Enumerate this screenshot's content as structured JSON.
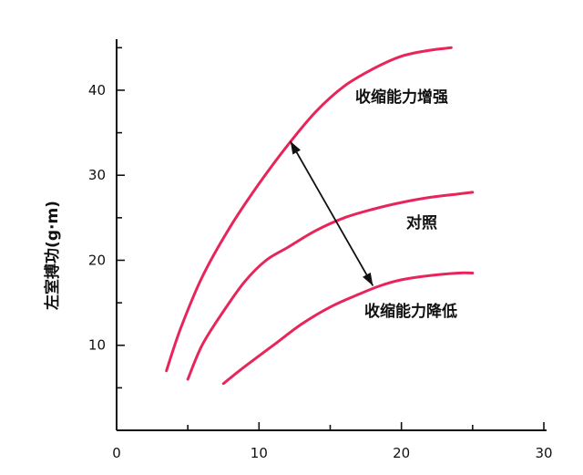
{
  "chart_data": {
    "type": "line",
    "title": "",
    "xlabel": "",
    "ylabel": "左室搏功(g·m)",
    "xlim": [
      0,
      30
    ],
    "ylim": [
      0,
      46
    ],
    "x_ticks": [
      0,
      10,
      20,
      30
    ],
    "y_ticks": [
      10,
      20,
      30,
      40
    ],
    "grid": false,
    "line_color": "#e8255a",
    "series": [
      {
        "name": "收缩能力增强",
        "points": [
          [
            3.5,
            7
          ],
          [
            4.5,
            12
          ],
          [
            6,
            18
          ],
          [
            8,
            24
          ],
          [
            10,
            29
          ],
          [
            12,
            33.5
          ],
          [
            14,
            37.5
          ],
          [
            16,
            40.5
          ],
          [
            18,
            42.5
          ],
          [
            20,
            44
          ],
          [
            22,
            44.7
          ],
          [
            23.5,
            45
          ]
        ]
      },
      {
        "name": "对照",
        "points": [
          [
            5,
            6
          ],
          [
            6,
            10
          ],
          [
            7.5,
            14
          ],
          [
            9,
            17.5
          ],
          [
            10.5,
            20
          ],
          [
            12,
            21.5
          ],
          [
            14,
            23.5
          ],
          [
            16,
            25
          ],
          [
            18,
            26
          ],
          [
            20,
            26.8
          ],
          [
            22,
            27.4
          ],
          [
            24,
            27.8
          ],
          [
            25,
            28
          ]
        ]
      },
      {
        "name": "收缩能力降低",
        "points": [
          [
            7.5,
            5.5
          ],
          [
            9,
            7.5
          ],
          [
            11,
            10
          ],
          [
            13,
            12.5
          ],
          [
            15,
            14.5
          ],
          [
            17,
            16
          ],
          [
            18.5,
            17
          ],
          [
            20,
            17.7
          ],
          [
            22,
            18.2
          ],
          [
            24,
            18.5
          ],
          [
            25,
            18.5
          ]
        ]
      }
    ],
    "annotation": {
      "type": "double-arrow",
      "from": [
        12.2,
        34
      ],
      "to": [
        18,
        17
      ]
    }
  }
}
